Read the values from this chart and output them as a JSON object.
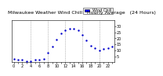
{
  "title": "Milwaukee Weather Wind Chill   Hourly Average   (24 Hours)",
  "hours": [
    0,
    1,
    2,
    3,
    4,
    5,
    6,
    7,
    8,
    9,
    10,
    11,
    12,
    13,
    14,
    15,
    16,
    17,
    18,
    19,
    20,
    21,
    22,
    23
  ],
  "wind_chill": [
    3,
    2,
    2,
    1,
    1,
    2,
    2,
    3,
    8,
    13,
    19,
    24,
    27,
    28,
    28,
    27,
    23,
    18,
    14,
    12,
    10,
    11,
    12,
    13
  ],
  "dot_color": "#0000cc",
  "bg_color": "#ffffff",
  "plot_bg": "#ffffff",
  "grid_color": "#888888",
  "legend_fill": "#0000ff",
  "legend_edge": "#000000",
  "ylim": [
    0,
    35
  ],
  "yticks": [
    5,
    10,
    15,
    20,
    25,
    30
  ],
  "grid_hours": [
    4,
    8,
    12,
    16,
    20
  ],
  "title_fontsize": 4.5,
  "tick_fontsize": 3.5,
  "dot_size": 3,
  "legend_label": "Wind Chill",
  "legend_fontsize": 3.5
}
